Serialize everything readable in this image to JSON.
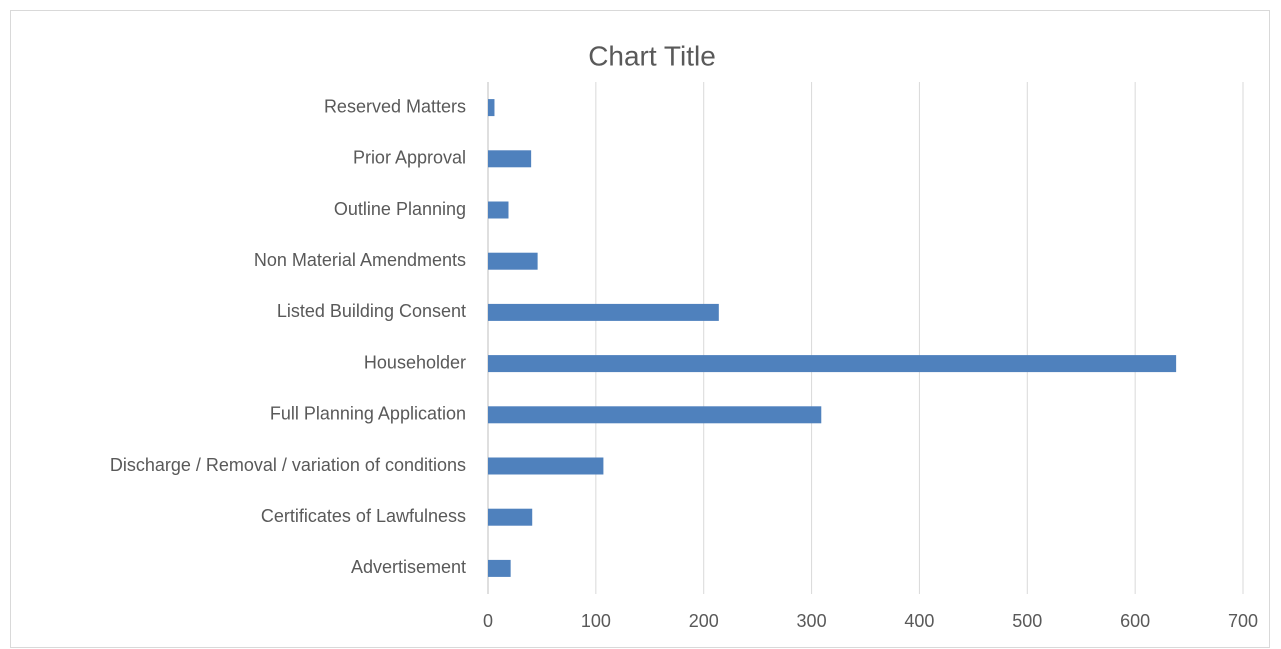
{
  "chart_data": {
    "type": "bar",
    "orientation": "horizontal",
    "title": "Chart Title",
    "categories": [
      "Advertisement",
      "Certificates of Lawfulness",
      "Discharge / Removal / variation of conditions",
      "Full Planning Application",
      "Householder",
      "Listed Building Consent",
      "Non Material Amendments",
      "Outline Planning",
      "Prior Approval",
      "Reserved Matters"
    ],
    "values": [
      21,
      41,
      107,
      309,
      638,
      214,
      46,
      19,
      40,
      6
    ],
    "color": "#4f81bd",
    "xlim": [
      0,
      700
    ],
    "xticks": [
      0,
      100,
      200,
      300,
      400,
      500,
      600,
      700
    ],
    "grid": true
  }
}
